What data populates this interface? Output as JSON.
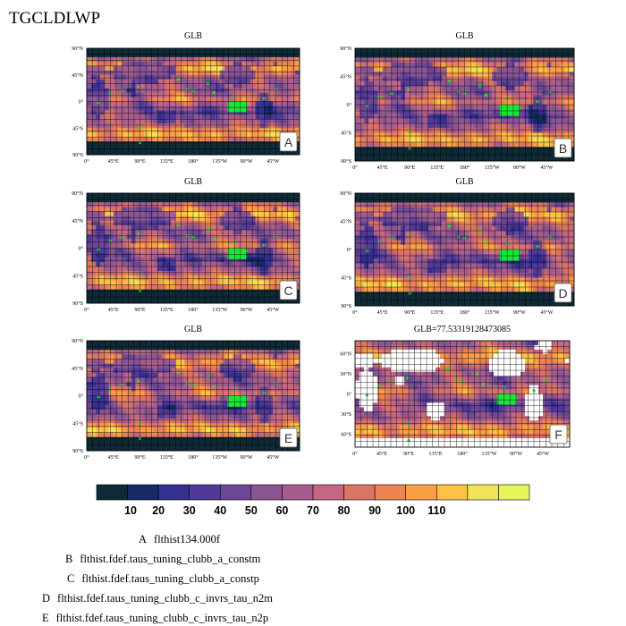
{
  "figure_title": "TGCLDLWP",
  "colors": {
    "land": "#0f2a36",
    "dot": "#18e838",
    "ocean_bg": "#6b4796",
    "grid": "#000000"
  },
  "colorbar": {
    "colors": [
      "#0e2a36",
      "#152a66",
      "#343090",
      "#51399a",
      "#6c4796",
      "#8b5594",
      "#a65d8e",
      "#c36782",
      "#da7566",
      "#ec8452",
      "#f8a042",
      "#fcc245",
      "#f1e356",
      "#e6f659"
    ],
    "labels": [
      "10",
      "20",
      "30",
      "40",
      "50",
      "60",
      "70",
      "80",
      "90",
      "100",
      "110"
    ]
  },
  "chart_data": [
    {
      "type": "heatmap",
      "panel": "A",
      "title": "GLB",
      "variable": "TGCLDLWP",
      "lat_ticks": [
        "90°N",
        "45°N",
        "0°",
        "45°S",
        "90°S"
      ],
      "lon_ticks": [
        "0°",
        "45°E",
        "90°E",
        "135°E",
        "180°",
        "135°W",
        "90°W",
        "45°W"
      ],
      "color_scale": [
        10,
        110
      ]
    },
    {
      "type": "heatmap",
      "panel": "B",
      "title": "GLB",
      "variable": "TGCLDLWP",
      "lat_ticks": [
        "90°N",
        "45°N",
        "0°",
        "45°S",
        "90°S"
      ],
      "lon_ticks": [
        "0°",
        "45°E",
        "90°E",
        "135°E",
        "180°",
        "135°W",
        "90°W",
        "45°W"
      ],
      "color_scale": [
        10,
        110
      ]
    },
    {
      "type": "heatmap",
      "panel": "C",
      "title": "GLB",
      "variable": "TGCLDLWP",
      "lat_ticks": [
        "90°N",
        "45°N",
        "0°",
        "45°S",
        "90°S"
      ],
      "lon_ticks": [
        "0°",
        "45°E",
        "90°E",
        "135°E",
        "180°",
        "135°W",
        "90°W",
        "45°W"
      ],
      "color_scale": [
        10,
        110
      ]
    },
    {
      "type": "heatmap",
      "panel": "D",
      "title": "GLB",
      "variable": "TGCLDLWP",
      "lat_ticks": [
        "90°N",
        "45°N",
        "0°",
        "45°S",
        "90°S"
      ],
      "lon_ticks": [
        "0°",
        "45°E",
        "90°E",
        "135°E",
        "180°",
        "135°W",
        "90°W",
        "45°W"
      ],
      "color_scale": [
        10,
        110
      ]
    },
    {
      "type": "heatmap",
      "panel": "E",
      "title": "GLB",
      "variable": "TGCLDLWP",
      "lat_ticks": [
        "90°N",
        "45°N",
        "0°",
        "45°S",
        "90°S"
      ],
      "lon_ticks": [
        "0°",
        "45°E",
        "90°E",
        "135°E",
        "180°",
        "135°W",
        "90°W",
        "45°W"
      ],
      "color_scale": [
        10,
        110
      ]
    },
    {
      "type": "heatmap",
      "panel": "F",
      "title": "GLB=77.53319128473085",
      "variable": "TGCLDLWP",
      "global_mean": 77.53319128473085,
      "lat_ticks": [
        "60°N",
        "30°N",
        "0°",
        "30°S",
        "60°S"
      ],
      "lon_ticks": [
        "0°",
        "45°E",
        "90°E",
        "135°E",
        "180°",
        "135°W",
        "90°W",
        "45°W"
      ],
      "color_scale": [
        10,
        110
      ],
      "ocean_only": true
    }
  ],
  "panels": [
    {
      "letter": "A",
      "title": "GLB",
      "lat_ticks": [
        "90°N",
        "45°N",
        "0°",
        "45°S",
        "90°S"
      ],
      "lon_ticks": [
        "0°",
        "45°E",
        "90°E",
        "135°E",
        "180°",
        "135°W",
        "90°W",
        "45°W"
      ]
    },
    {
      "letter": "B",
      "title": "GLB",
      "lat_ticks": [
        "90°N",
        "45°N",
        "0°",
        "45°S",
        "90°S"
      ],
      "lon_ticks": [
        "0°",
        "45°E",
        "90°E",
        "135°E",
        "180°",
        "135°W",
        "90°W",
        "45°W"
      ]
    },
    {
      "letter": "C",
      "title": "GLB",
      "lat_ticks": [
        "90°N",
        "45°N",
        "0°",
        "45°S",
        "90°S"
      ],
      "lon_ticks": [
        "0°",
        "45°E",
        "90°E",
        "135°E",
        "180°",
        "135°W",
        "90°W",
        "45°W"
      ]
    },
    {
      "letter": "D",
      "title": "GLB",
      "lat_ticks": [
        "90°N",
        "45°N",
        "0°",
        "45°S",
        "90°S"
      ],
      "lon_ticks": [
        "0°",
        "45°E",
        "90°E",
        "135°E",
        "180°",
        "135°W",
        "90°W",
        "45°W"
      ]
    },
    {
      "letter": "E",
      "title": "GLB",
      "lat_ticks": [
        "90°N",
        "45°N",
        "0°",
        "45°S",
        "90°S"
      ],
      "lon_ticks": [
        "0°",
        "45°E",
        "90°E",
        "135°E",
        "180°",
        "135°W",
        "90°W",
        "45°W"
      ]
    },
    {
      "letter": "F",
      "title": "GLB=77.53319128473085",
      "lat_ticks": [
        "60°N",
        "30°N",
        "0°",
        "30°S",
        "60°S"
      ],
      "lon_ticks": [
        "0°",
        "45°E",
        "90°E",
        "135°E",
        "180°",
        "135°W",
        "90°W",
        "45°W"
      ]
    }
  ],
  "legend": [
    {
      "letter": "A",
      "text": "flthist134.000f"
    },
    {
      "letter": "B",
      "text": "flthist.fdef.taus_tuning_clubb_a_constm"
    },
    {
      "letter": "C",
      "text": "flthist.fdef.taus_tuning_clubb_a_constp"
    },
    {
      "letter": "D",
      "text": "flthist.fdef.taus_tuning_clubb_c_invrs_tau_n2m"
    },
    {
      "letter": "E",
      "text": "flthist.fdef.taus_tuning_clubb_c_invrs_tau_n2p"
    }
  ]
}
